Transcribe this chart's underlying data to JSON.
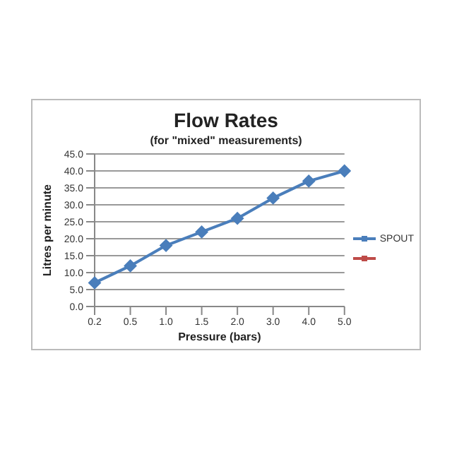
{
  "chart_data": {
    "type": "line",
    "title": "Flow Rates",
    "subtitle": "(for \"mixed\" measurements)",
    "xlabel": "Pressure (bars)",
    "ylabel": "Litres per minute",
    "categories": [
      "0.2",
      "0.5",
      "1.0",
      "1.5",
      "2.0",
      "3.0",
      "4.0",
      "5.0"
    ],
    "series": [
      {
        "name": "SPOUT",
        "color": "#4a7ebb",
        "values": [
          7,
          12,
          18,
          22,
          26,
          32,
          37,
          40
        ]
      },
      {
        "color": "#be4b48",
        "values": [
          null,
          null,
          null,
          null,
          null,
          null,
          null,
          null
        ]
      }
    ],
    "ylim": [
      0,
      45
    ],
    "yticks": [
      {
        "value": 0,
        "label": "0.0"
      },
      {
        "value": 5,
        "label": "5.0"
      },
      {
        "value": 10,
        "label": "10.0"
      },
      {
        "value": 15,
        "label": "15.0"
      },
      {
        "value": 20,
        "label": "20.0"
      },
      {
        "value": 25,
        "label": "25.0"
      },
      {
        "value": 30,
        "label": "30.0"
      },
      {
        "value": 35,
        "label": "35.0"
      },
      {
        "value": 40,
        "label": "40.0"
      },
      {
        "value": 45,
        "label": "45.0"
      }
    ],
    "grid": "y",
    "legend": "right",
    "marker": "diamond",
    "line_style": "solid"
  }
}
